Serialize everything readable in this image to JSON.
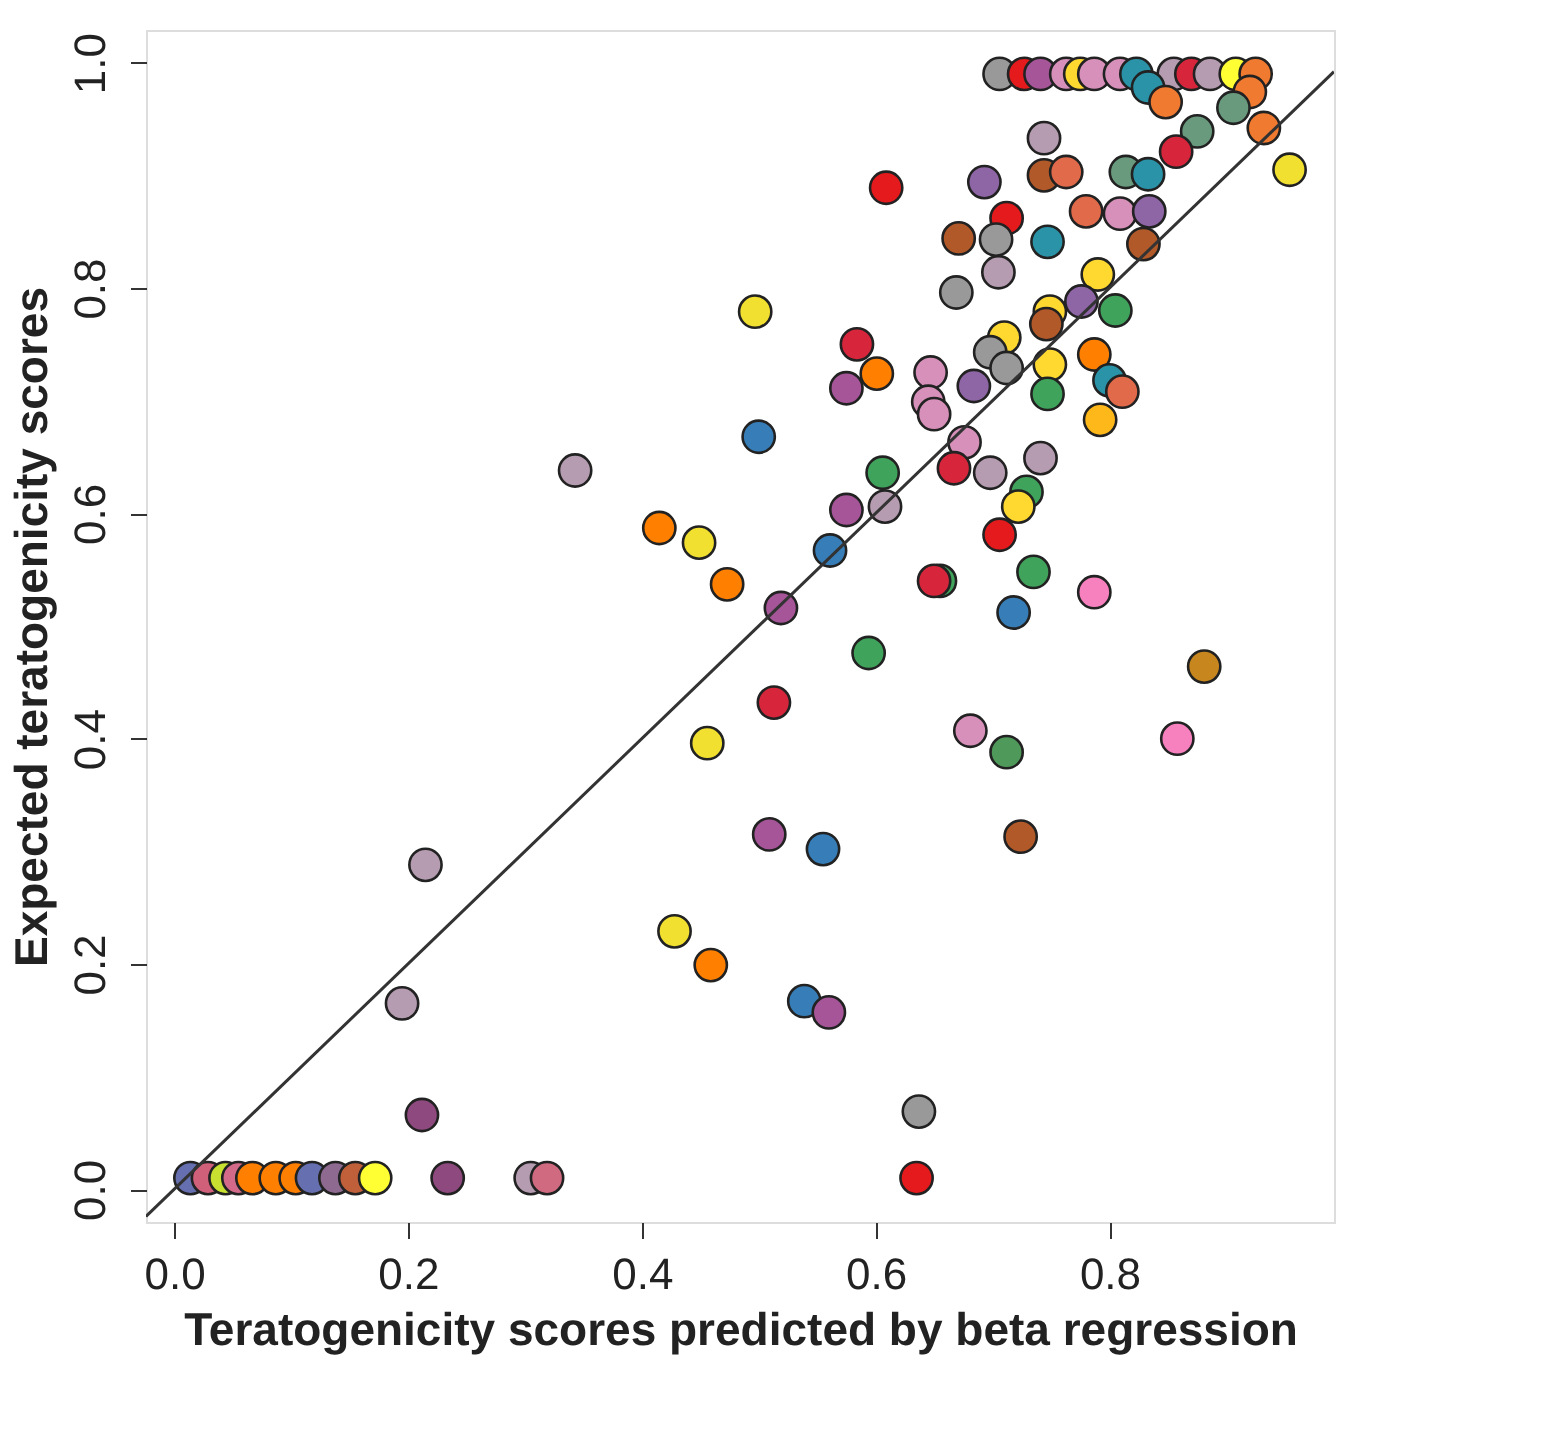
{
  "chart_data": {
    "type": "scatter",
    "xlabel": "Teratogenicity scores predicted by beta regression",
    "ylabel": "Expected teratogenicity scores",
    "xlim": [
      -0.024,
      0.992
    ],
    "ylim": [
      -0.029,
      1.029
    ],
    "xticks": [
      {
        "value": 0,
        "label": "0.0"
      },
      0.2,
      0.4,
      0.6,
      0.8
    ],
    "yticks": [
      {
        "value": 0,
        "label": "0.0"
      },
      0.2,
      0.4,
      0.6,
      0.8,
      {
        "value": 1,
        "label": "1.0"
      }
    ],
    "grid": false,
    "series": [
      {
        "marker": "circle",
        "x": [
          0.014,
          0.029,
          0.044,
          0.055,
          0.067,
          0.087,
          0.104,
          0.118,
          0.138,
          0.155,
          0.172,
          0.234,
          0.305,
          0.319,
          0.215,
          0.195,
          0.212,
          0.456,
          0.428,
          0.459,
          0.343,
          0.415,
          0.449,
          0.473,
          0.519,
          0.718,
          0.787,
          0.594,
          0.881,
          0.513,
          0.681,
          0.712,
          0.858,
          0.509,
          0.555,
          0.724,
          0.539,
          0.56,
          0.637,
          0.635,
          0.706,
          0.727,
          0.741,
          0.763,
          0.775,
          0.787,
          0.809,
          0.823,
          0.855,
          0.87,
          0.886,
          0.908,
          0.925,
          0.833,
          0.848,
          0.92,
          0.906,
          0.932,
          0.954,
          0.875,
          0.857,
          0.744,
          0.609,
          0.693,
          0.744,
          0.763,
          0.814,
          0.833,
          0.78,
          0.809,
          0.834,
          0.712,
          0.671,
          0.703,
          0.747,
          0.829,
          0.705,
          0.669,
          0.79,
          0.776,
          0.749,
          0.805,
          0.497,
          0.584,
          0.71,
          0.746,
          0.698,
          0.712,
          0.601,
          0.575,
          0.647,
          0.684,
          0.749,
          0.787,
          0.8,
          0.811,
          0.747,
          0.792,
          0.645,
          0.65,
          0.5,
          0.676,
          0.606,
          0.667,
          0.698,
          0.741,
          0.575,
          0.608,
          0.729,
          0.722,
          0.561,
          0.706,
          0.735,
          0.655,
          0.65
        ],
        "values": [
          0.01,
          0.01,
          0.01,
          0.01,
          0.01,
          0.01,
          0.01,
          0.01,
          0.01,
          0.01,
          0.01,
          0.01,
          0.01,
          0.01,
          0.288,
          0.165,
          0.066,
          0.396,
          0.229,
          0.199,
          0.638,
          0.587,
          0.574,
          0.537,
          0.516,
          0.512,
          0.53,
          0.476,
          0.464,
          0.432,
          0.407,
          0.388,
          0.4,
          0.315,
          0.302,
          0.313,
          0.167,
          0.157,
          0.069,
          0.01,
          0.99,
          0.99,
          0.99,
          0.99,
          0.99,
          0.99,
          0.99,
          0.99,
          0.99,
          0.99,
          0.99,
          0.99,
          0.99,
          0.978,
          0.965,
          0.974,
          0.96,
          0.942,
          0.905,
          0.939,
          0.921,
          0.933,
          0.889,
          0.894,
          0.9,
          0.903,
          0.903,
          0.901,
          0.868,
          0.866,
          0.868,
          0.862,
          0.844,
          0.843,
          0.841,
          0.839,
          0.814,
          0.796,
          0.812,
          0.788,
          0.779,
          0.78,
          0.779,
          0.75,
          0.756,
          0.768,
          0.743,
          0.729,
          0.724,
          0.711,
          0.725,
          0.713,
          0.732,
          0.741,
          0.718,
          0.708,
          0.706,
          0.683,
          0.699,
          0.688,
          0.668,
          0.663,
          0.636,
          0.64,
          0.636,
          0.649,
          0.603,
          0.606,
          0.619,
          0.606,
          0.567,
          0.581,
          0.548,
          0.54,
          0.54
        ],
        "colors": [
          "#6670b0",
          "#d0607a",
          "#c8e030",
          "#d46a8a",
          "#ff7f00",
          "#ff7f00",
          "#ff7f00",
          "#6670b0",
          "#8e6a90",
          "#c0603a",
          "#ffff33",
          "#8e4a7e",
          "#b59cb0",
          "#d06a80",
          "#b59cb0",
          "#b59cb0",
          "#8e4a7e",
          "#f2e030",
          "#f2e030",
          "#ff7f00",
          "#b59cb0",
          "#ff7f00",
          "#f2e030",
          "#ff7f00",
          "#a65698",
          "#377eb8",
          "#f781bf",
          "#3fa35b",
          "#c8861e",
          "#d7263c",
          "#d690b9",
          "#4f9a5a",
          "#f781bf",
          "#a65698",
          "#377eb8",
          "#b15928",
          "#377eb8",
          "#a65698",
          "#999999",
          "#e41a1c",
          "#999999",
          "#e41a1c",
          "#a65698",
          "#d690b9",
          "#ffd92f",
          "#d690b9",
          "#d690b9",
          "#2a93a8",
          "#b59cb0",
          "#d7263c",
          "#b59cb0",
          "#ffff33",
          "#f07a30",
          "#2a93a8",
          "#f07a30",
          "#f07a30",
          "#6a9a7d",
          "#f07a30",
          "#f2e030",
          "#6a9a7d",
          "#d7263c",
          "#b59cb0",
          "#e41a1c",
          "#8e65a5",
          "#b15928",
          "#e06a4a",
          "#6a9a7d",
          "#2a93a8",
          "#e06a4a",
          "#d690b9",
          "#8e65a5",
          "#e41a1c",
          "#b15928",
          "#999999",
          "#2a93a8",
          "#b15928",
          "#b59cb0",
          "#999999",
          "#ffd92f",
          "#8e65a5",
          "#ffd92f",
          "#3fa35b",
          "#f2e030",
          "#d7263c",
          "#ffd92f",
          "#b15928",
          "#999999",
          "#999999",
          "#ff7f00",
          "#a65698",
          "#d690b9",
          "#8e65a5",
          "#ffd92f",
          "#ff7f00",
          "#2a93a8",
          "#e06a4a",
          "#3fa35b",
          "#ffb81a",
          "#d690b9",
          "#d690b9",
          "#377eb8",
          "#d690b9",
          "#3fa35b",
          "#d7263c",
          "#b59cb0",
          "#b59cb0",
          "#a65698",
          "#b59cb0",
          "#3fa35b",
          "#ffd92f",
          "#377eb8",
          "#e41a1c",
          "#3fa35b",
          "#3fa35b",
          "#d7263c"
        ]
      },
      {
        "type": "line",
        "marker": "none",
        "line_style": "solid",
        "x": [
          -0.024,
          0.992
        ],
        "values": [
          -0.024,
          0.992
        ],
        "color": "#333333"
      }
    ]
  }
}
